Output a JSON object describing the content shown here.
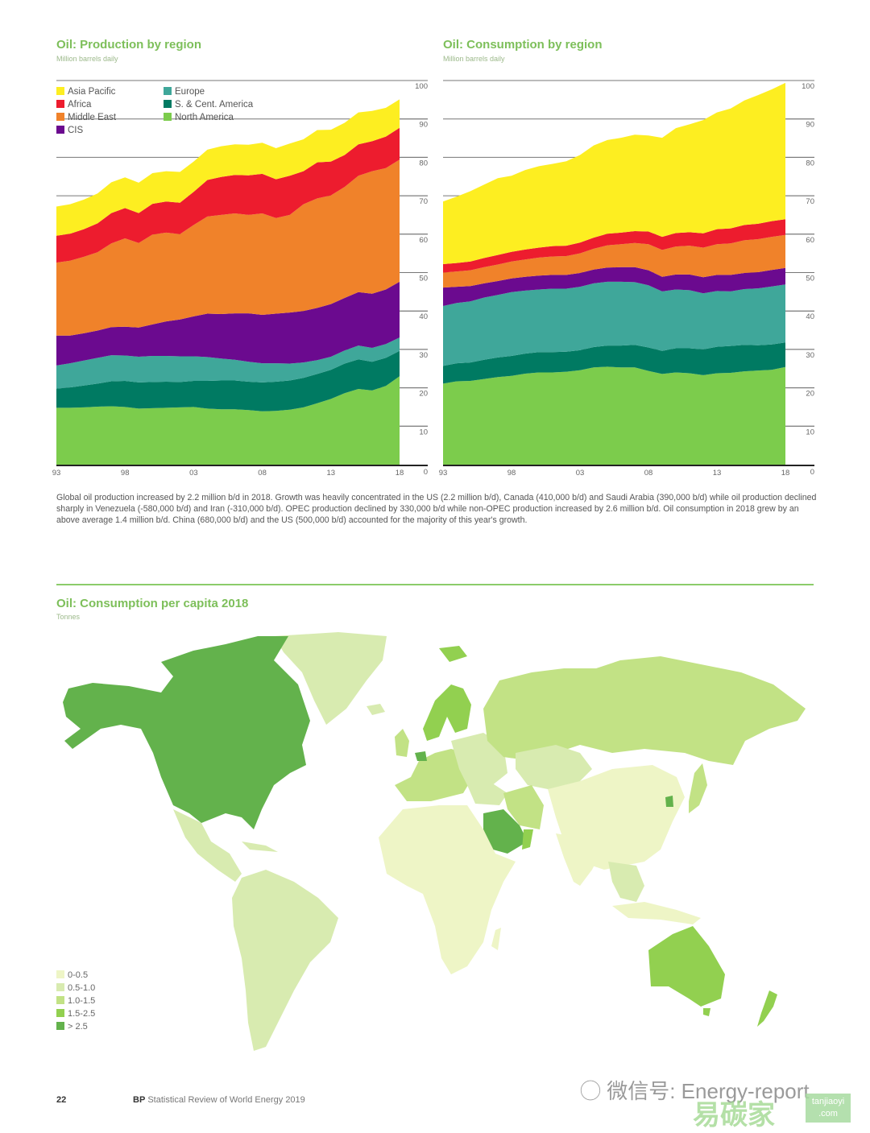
{
  "page": {
    "number": "22",
    "footer_brand": "BP",
    "footer_title": "Statistical Review of World Energy 2019",
    "watermark_text": "微信号: Energy-report",
    "watermark_logo": "易碳家",
    "watermark_badge": "tanjiaoyi .com"
  },
  "colors": {
    "Asia Pacific": "#fdee21",
    "Africa": "#ed1c2e",
    "Middle East": "#f0822a",
    "CIS": "#6b0a8f",
    "Europe": "#3fa79a",
    "S. & Cent. America": "#007a62",
    "North America": "#7ccc4c"
  },
  "body_text": "Global oil production increased by 2.2 million b/d in 2018. Growth was heavily concentrated in the US (2.2 million b/d), Canada (410,000 b/d) and Saudi Arabia (390,000 b/d) while oil production declined sharply in Venezuela (-580,000 b/d) and Iran (-310,000 b/d). OPEC production declined by 330,000 b/d while non-OPEC production increased by 2.6 million b/d. Oil consumption in 2018 grew by an above average 1.4 million b/d. China (680,000 b/d) and the US (500,000 b/d) accounted for the majority of this year's growth.",
  "chart_data": [
    {
      "type": "area",
      "stacked": true,
      "title": "Oil: Production by region",
      "subtitle": "Million barrels daily",
      "xlabel": "",
      "ylabel": "",
      "ylim": [
        0,
        100
      ],
      "yticks": [
        0,
        10,
        20,
        30,
        40,
        50,
        60,
        70,
        80,
        90,
        100
      ],
      "xtick_labels": [
        "93",
        "98",
        "03",
        "08",
        "13",
        "18"
      ],
      "xtick_years": [
        1993,
        1998,
        2003,
        2008,
        2013,
        2018
      ],
      "legend_position": "top-left",
      "legend": [
        "Asia Pacific",
        "Africa",
        "Middle East",
        "CIS",
        "Europe",
        "S. & Cent. America",
        "North America"
      ],
      "x": [
        1993,
        1994,
        1995,
        1996,
        1997,
        1998,
        1999,
        2000,
        2001,
        2002,
        2003,
        2004,
        2005,
        2006,
        2007,
        2008,
        2009,
        2010,
        2011,
        2012,
        2013,
        2014,
        2015,
        2016,
        2017,
        2018
      ],
      "series": [
        {
          "name": "North America",
          "values": [
            14.8,
            14.8,
            14.9,
            15.1,
            15.2,
            15.0,
            14.6,
            14.7,
            14.8,
            14.9,
            15.0,
            14.6,
            14.4,
            14.4,
            14.2,
            13.9,
            14.0,
            14.3,
            14.9,
            16.0,
            17.1,
            18.6,
            19.7,
            19.3,
            20.5,
            23.0
          ]
        },
        {
          "name": "S. & Cent. America",
          "values": [
            5.0,
            5.3,
            5.7,
            6.0,
            6.5,
            6.8,
            6.8,
            6.8,
            6.8,
            6.6,
            6.8,
            7.2,
            7.5,
            7.5,
            7.4,
            7.5,
            7.6,
            7.6,
            7.7,
            7.6,
            7.6,
            7.7,
            7.7,
            7.5,
            7.3,
            6.6
          ]
        },
        {
          "name": "Europe",
          "values": [
            6.0,
            6.3,
            6.5,
            6.7,
            6.8,
            6.6,
            6.7,
            6.8,
            6.7,
            6.7,
            6.4,
            6.2,
            5.7,
            5.4,
            5.2,
            5.0,
            4.8,
            4.4,
            4.0,
            3.6,
            3.4,
            3.4,
            3.6,
            3.6,
            3.6,
            3.5
          ]
        },
        {
          "name": "CIS",
          "values": [
            7.8,
            7.2,
            7.1,
            7.1,
            7.3,
            7.5,
            7.6,
            8.2,
            9.0,
            9.6,
            10.4,
            11.3,
            11.6,
            12.1,
            12.6,
            12.6,
            12.9,
            13.3,
            13.4,
            13.6,
            13.7,
            13.7,
            13.9,
            14.1,
            14.2,
            14.5
          ]
        },
        {
          "name": "Middle East",
          "values": [
            19.0,
            19.5,
            19.9,
            20.4,
            21.8,
            23.0,
            22.0,
            23.4,
            23.1,
            22.2,
            23.8,
            25.3,
            25.8,
            26.0,
            25.6,
            26.4,
            24.9,
            25.4,
            27.8,
            28.5,
            28.3,
            28.9,
            30.3,
            31.9,
            31.6,
            31.8
          ]
        },
        {
          "name": "Africa",
          "values": [
            7.0,
            7.0,
            7.2,
            7.5,
            7.9,
            7.9,
            7.8,
            8.0,
            8.1,
            8.2,
            8.6,
            9.5,
            9.9,
            10.0,
            10.3,
            10.3,
            10.1,
            10.2,
            8.6,
            9.4,
            8.8,
            8.3,
            8.2,
            7.8,
            8.2,
            8.3
          ]
        },
        {
          "name": "Asia Pacific",
          "values": [
            7.6,
            7.7,
            7.7,
            7.8,
            8.0,
            8.0,
            7.9,
            8.0,
            7.9,
            8.0,
            7.9,
            7.9,
            8.0,
            8.0,
            8.0,
            8.1,
            8.1,
            8.4,
            8.3,
            8.4,
            8.3,
            8.4,
            8.3,
            7.9,
            7.5,
            7.4
          ]
        }
      ]
    },
    {
      "type": "area",
      "stacked": true,
      "title": "Oil: Consumption by region",
      "subtitle": "Million barrels daily",
      "xlabel": "",
      "ylabel": "",
      "ylim": [
        0,
        100
      ],
      "yticks": [
        0,
        10,
        20,
        30,
        40,
        50,
        60,
        70,
        80,
        90,
        100
      ],
      "xtick_labels": [
        "93",
        "98",
        "03",
        "08",
        "13",
        "18"
      ],
      "xtick_years": [
        1993,
        1998,
        2003,
        2008,
        2013,
        2018
      ],
      "x": [
        1993,
        1994,
        1995,
        1996,
        1997,
        1998,
        1999,
        2000,
        2001,
        2002,
        2003,
        2004,
        2005,
        2006,
        2007,
        2008,
        2009,
        2010,
        2011,
        2012,
        2013,
        2014,
        2015,
        2016,
        2017,
        2018
      ],
      "series": [
        {
          "name": "North America",
          "values": [
            21.1,
            21.7,
            21.8,
            22.3,
            22.8,
            23.1,
            23.7,
            24.0,
            24.0,
            24.2,
            24.6,
            25.3,
            25.5,
            25.3,
            25.3,
            24.4,
            23.6,
            24.0,
            23.8,
            23.3,
            23.8,
            23.9,
            24.3,
            24.5,
            24.7,
            25.4
          ]
        },
        {
          "name": "S. & Cent. America",
          "values": [
            4.6,
            4.7,
            4.8,
            5.0,
            5.1,
            5.2,
            5.2,
            5.3,
            5.3,
            5.2,
            5.2,
            5.3,
            5.5,
            5.7,
            5.9,
            6.1,
            6.0,
            6.3,
            6.5,
            6.7,
            6.9,
            7.0,
            6.9,
            6.6,
            6.6,
            6.4
          ]
        },
        {
          "name": "Europe",
          "values": [
            15.6,
            15.7,
            15.9,
            16.2,
            16.3,
            16.6,
            16.4,
            16.3,
            16.5,
            16.4,
            16.5,
            16.6,
            16.6,
            16.6,
            16.3,
            16.2,
            15.5,
            15.3,
            15.1,
            14.6,
            14.5,
            14.2,
            14.5,
            14.8,
            15.1,
            15.1
          ]
        },
        {
          "name": "CIS",
          "values": [
            4.8,
            4.2,
            4.0,
            3.7,
            3.6,
            3.6,
            3.6,
            3.6,
            3.6,
            3.6,
            3.6,
            3.6,
            3.7,
            3.8,
            3.9,
            3.9,
            3.8,
            3.9,
            4.1,
            4.2,
            4.2,
            4.3,
            4.2,
            4.2,
            4.3,
            4.3
          ]
        },
        {
          "name": "Middle East",
          "values": [
            3.9,
            4.0,
            4.1,
            4.2,
            4.3,
            4.4,
            4.5,
            4.7,
            4.8,
            4.9,
            5.1,
            5.4,
            5.8,
            6.0,
            6.3,
            6.8,
            7.0,
            7.3,
            7.5,
            7.7,
            8.0,
            8.2,
            8.5,
            8.6,
            8.6,
            8.6
          ]
        },
        {
          "name": "Africa",
          "values": [
            2.2,
            2.2,
            2.3,
            2.4,
            2.5,
            2.5,
            2.6,
            2.6,
            2.7,
            2.7,
            2.8,
            2.9,
            3.0,
            3.0,
            3.1,
            3.3,
            3.4,
            3.5,
            3.5,
            3.7,
            3.9,
            3.9,
            4.0,
            4.0,
            4.1,
            4.1
          ]
        },
        {
          "name": "Asia Pacific",
          "values": [
            16.3,
            17.3,
            18.3,
            19.1,
            20.0,
            19.8,
            20.7,
            21.2,
            21.4,
            22.0,
            22.8,
            24.0,
            24.4,
            24.7,
            25.1,
            25.0,
            25.8,
            27.3,
            28.1,
            29.5,
            30.4,
            31.2,
            32.4,
            33.5,
            34.3,
            35.5
          ]
        }
      ]
    },
    {
      "type": "map",
      "title": "Oil: Consumption per capita 2018",
      "subtitle": "Tonnes",
      "legend_position": "bottom-left",
      "bins": [
        {
          "label": "0-0.5",
          "color": "#eef5c6"
        },
        {
          "label": "0.5-1.0",
          "color": "#d8ebb0"
        },
        {
          "label": "1.0-1.5",
          "color": "#c2e285"
        },
        {
          "label": "1.5-2.5",
          "color": "#92d050"
        },
        {
          "label": "> 2.5",
          "color": "#63b24c"
        }
      ],
      "regions": [
        {
          "name": "United States & Canada",
          "bin": "> 2.5"
        },
        {
          "name": "Saudi Arabia",
          "bin": "> 2.5"
        },
        {
          "name": "South Korea",
          "bin": "> 2.5"
        },
        {
          "name": "Belgium/Netherlands",
          "bin": "> 2.5"
        },
        {
          "name": "Australia",
          "bin": "1.5-2.5"
        },
        {
          "name": "New Zealand",
          "bin": "1.5-2.5"
        },
        {
          "name": "Norway/Finland",
          "bin": "1.5-2.5"
        },
        {
          "name": "Oman",
          "bin": "1.5-2.5"
        },
        {
          "name": "Russia",
          "bin": "1.0-1.5"
        },
        {
          "name": "Western Europe",
          "bin": "1.0-1.5"
        },
        {
          "name": "Japan",
          "bin": "1.0-1.5"
        },
        {
          "name": "Iran",
          "bin": "1.0-1.5"
        },
        {
          "name": "Greenland",
          "bin": "0.5-1.0"
        },
        {
          "name": "Mexico",
          "bin": "0.5-1.0"
        },
        {
          "name": "South America",
          "bin": "0.5-1.0"
        },
        {
          "name": "Kazakhstan",
          "bin": "0.5-1.0"
        },
        {
          "name": "China",
          "bin": "0-0.5"
        },
        {
          "name": "India",
          "bin": "0-0.5"
        },
        {
          "name": "Africa",
          "bin": "0-0.5"
        }
      ]
    }
  ]
}
